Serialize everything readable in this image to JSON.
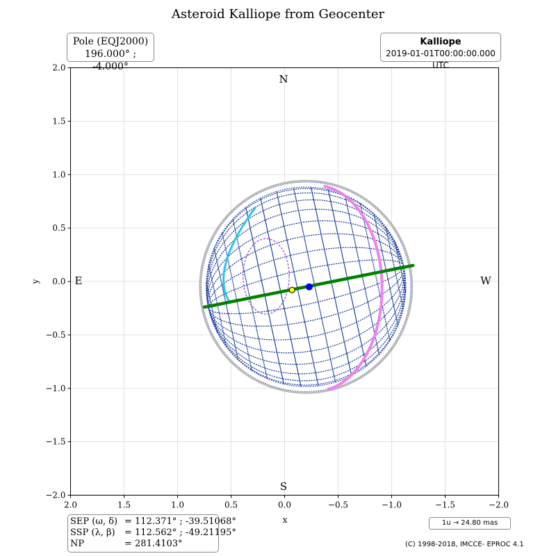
{
  "header": {
    "title": "Asteroid Kalliope from Geocenter"
  },
  "pole": {
    "label": "Pole (EQJ2000)",
    "value": "196.000° ; -4.000°"
  },
  "target": {
    "name": "Kalliope",
    "datetime": "2019-01-01T00:00:00.000 UTC"
  },
  "geometry": {
    "sep_label": "SEP (ω, δ)",
    "sep_value": "= 112.371° ; -39.51068°",
    "ssp_label": "SSP (λ, β)",
    "ssp_value": "= 112.562° ; -49.21195°",
    "np_label": "NP",
    "np_value": "= 281.4103°"
  },
  "scale": {
    "label": "1u → 24.80 mas"
  },
  "footer": {
    "copyright": "(C) 1998-2018, IMCCE- EPROC 4.1"
  },
  "compass": {
    "north": "N",
    "south": "S",
    "east": "E",
    "west": "W"
  },
  "colors": {
    "mesh": "#1f3f9e",
    "equator": "#008000",
    "terminator": "#ee82ee",
    "limb_arc": "#29c7e8",
    "sep_marker": "#ffff00",
    "ssp_marker": "#0000ff",
    "grid": "#d9d9d9"
  },
  "chart_data": {
    "type": "scatter",
    "title": "Asteroid Kalliope from Geocenter",
    "xlabel": "x",
    "ylabel": "y",
    "xlim": [
      2.0,
      -2.0
    ],
    "ylim": [
      -2.0,
      2.0
    ],
    "xticks": [
      "2.0",
      "1.5",
      "1.0",
      "0.5",
      "0.0",
      "−0.5",
      "−1.0",
      "−1.5",
      "−2.0"
    ],
    "yticks": [
      "2.0",
      "1.5",
      "1.0",
      "0.5",
      "0.0",
      "−0.5",
      "−1.0",
      "−1.5",
      "−2.0"
    ],
    "grid": true,
    "body": {
      "center": [
        -0.2,
        -0.05
      ],
      "radius": 0.98
    },
    "equator_line": {
      "x": [
        0.75,
        -1.2
      ],
      "y": [
        -0.24,
        0.15
      ]
    },
    "sep_point": {
      "x": -0.07,
      "y": -0.08
    },
    "ssp_point": {
      "x": -0.23,
      "y": -0.05
    }
  }
}
